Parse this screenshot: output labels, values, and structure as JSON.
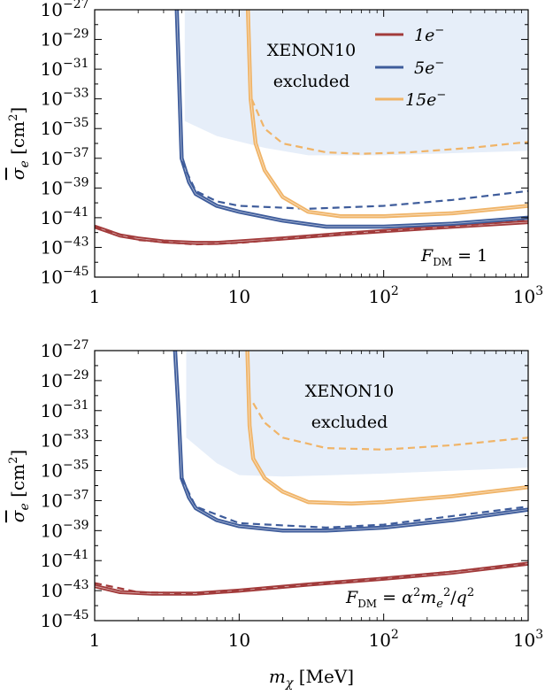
{
  "figure": {
    "xlabel": "m",
    "xlabel_sub": "χ",
    "xlabel_unit": " [MeV]",
    "ylabel": "σ",
    "ylabel_sub": "e",
    "ylabel_unit": " [cm",
    "ylabel_unit_sup": "2",
    "ylabel_unit_close": "]",
    "x_ticks": [
      {
        "value": 1,
        "base": "1",
        "exp": ""
      },
      {
        "value": 10,
        "base": "10",
        "exp": ""
      },
      {
        "value": 100,
        "base": "10",
        "exp": "2"
      },
      {
        "value": 1000,
        "base": "10",
        "exp": "3"
      }
    ],
    "y_ticks": [
      {
        "value": -27,
        "base": "10",
        "exp": "−27"
      },
      {
        "value": -29,
        "base": "10",
        "exp": "−29"
      },
      {
        "value": -31,
        "base": "10",
        "exp": "−31"
      },
      {
        "value": -33,
        "base": "10",
        "exp": "−33"
      },
      {
        "value": -35,
        "base": "10",
        "exp": "−35"
      },
      {
        "value": -37,
        "base": "10",
        "exp": "−37"
      },
      {
        "value": -39,
        "base": "10",
        "exp": "−39"
      },
      {
        "value": -41,
        "base": "10",
        "exp": "−41"
      },
      {
        "value": -43,
        "base": "10",
        "exp": "−43"
      },
      {
        "value": -45,
        "base": "10",
        "exp": "−45"
      }
    ],
    "excluded_label_1": "XENON10",
    "excluded_label_2": "excluded",
    "colors": {
      "one_e": "#a23b3b",
      "five_e": "#3e5c9b",
      "fifteen_e": "#f0b468",
      "excluded": "#e6eef9"
    }
  },
  "chart_data": [
    {
      "type": "line",
      "x_scale": "log",
      "y_scale": "log",
      "xlim": [
        1,
        1000
      ],
      "ylim_log10": [
        -45,
        -27
      ],
      "annotation": "F_DM = 1",
      "legend": {
        "placement": "top-right",
        "entries": [
          "1e⁻",
          "5e⁻",
          "15e⁻"
        ]
      },
      "excluded_region": {
        "label": "XENON10 excluded",
        "boundary": [
          [
            4.2,
            -27
          ],
          [
            4.2,
            -34.5
          ],
          [
            7,
            -35.5
          ],
          [
            15,
            -36.3
          ],
          [
            30,
            -36.8
          ],
          [
            100,
            -36.8
          ],
          [
            1000,
            -36.5
          ],
          [
            1000,
            -27
          ]
        ]
      },
      "series": [
        {
          "name": "1e⁻",
          "style": "solid",
          "points": [
            [
              1,
              -41.6
            ],
            [
              1.5,
              -42.2
            ],
            [
              2,
              -42.4
            ],
            [
              3,
              -42.6
            ],
            [
              5,
              -42.7
            ],
            [
              7,
              -42.7
            ],
            [
              10,
              -42.6
            ],
            [
              20,
              -42.4
            ],
            [
              50,
              -42.1
            ],
            [
              100,
              -41.9
            ],
            [
              300,
              -41.6
            ],
            [
              1000,
              -41.3
            ]
          ]
        },
        {
          "name": "1e⁻",
          "style": "dashed",
          "points": [
            [
              1,
              -41.6
            ],
            [
              2,
              -42.5
            ],
            [
              5,
              -42.8
            ],
            [
              10,
              -42.7
            ],
            [
              30,
              -42.3
            ],
            [
              100,
              -41.9
            ],
            [
              1000,
              -41.2
            ]
          ]
        },
        {
          "name": "5e⁻",
          "style": "solid",
          "points": [
            [
              3.7,
              -27
            ],
            [
              3.85,
              -32
            ],
            [
              4,
              -37
            ],
            [
              4.5,
              -38.6
            ],
            [
              5,
              -39.4
            ],
            [
              7,
              -40.2
            ],
            [
              10,
              -40.6
            ],
            [
              20,
              -41.2
            ],
            [
              40,
              -41.6
            ],
            [
              100,
              -41.6
            ],
            [
              300,
              -41.4
            ],
            [
              1000,
              -41.0
            ]
          ]
        },
        {
          "name": "5e⁻",
          "style": "dashed",
          "points": [
            [
              4,
              -37.2
            ],
            [
              5,
              -39.2
            ],
            [
              7,
              -39.9
            ],
            [
              10,
              -40.2
            ],
            [
              30,
              -40.4
            ],
            [
              100,
              -40.2
            ],
            [
              300,
              -39.8
            ],
            [
              1000,
              -39.2
            ]
          ]
        },
        {
          "name": "15e⁻",
          "style": "solid",
          "points": [
            [
              11.5,
              -27
            ],
            [
              12,
              -33
            ],
            [
              13,
              -36
            ],
            [
              15,
              -37.8
            ],
            [
              20,
              -39.6
            ],
            [
              30,
              -40.6
            ],
            [
              50,
              -40.9
            ],
            [
              100,
              -40.9
            ],
            [
              300,
              -40.7
            ],
            [
              1000,
              -40.2
            ]
          ]
        },
        {
          "name": "15e⁻",
          "style": "dashed",
          "points": [
            [
              12.2,
              -33
            ],
            [
              15,
              -35
            ],
            [
              20,
              -36
            ],
            [
              40,
              -36.6
            ],
            [
              70,
              -36.7
            ],
            [
              150,
              -36.6
            ],
            [
              400,
              -36.3
            ],
            [
              1000,
              -35.9
            ]
          ]
        }
      ]
    },
    {
      "type": "line",
      "x_scale": "log",
      "y_scale": "log",
      "xlim": [
        1,
        1000
      ],
      "ylim_log10": [
        -45,
        -27
      ],
      "annotation": "F_DM = α²m_e²/q²",
      "excluded_region": {
        "label": "XENON10 excluded",
        "boundary": [
          [
            4.3,
            -27
          ],
          [
            4.3,
            -32.8
          ],
          [
            7,
            -34.5
          ],
          [
            10,
            -35.3
          ],
          [
            20,
            -35.4
          ],
          [
            100,
            -35.2
          ],
          [
            1000,
            -34.8
          ],
          [
            1000,
            -27
          ]
        ]
      },
      "series": [
        {
          "name": "1e⁻",
          "style": "solid",
          "points": [
            [
              1,
              -42.7
            ],
            [
              1.5,
              -43.1
            ],
            [
              2.5,
              -43.2
            ],
            [
              5,
              -43.2
            ],
            [
              10,
              -43.0
            ],
            [
              30,
              -42.6
            ],
            [
              100,
              -42.2
            ],
            [
              300,
              -41.8
            ],
            [
              1000,
              -41.2
            ]
          ]
        },
        {
          "name": "1e⁻",
          "style": "dashed",
          "points": [
            [
              1,
              -42.5
            ],
            [
              2,
              -43.1
            ],
            [
              5,
              -43.2
            ],
            [
              10,
              -43.0
            ],
            [
              100,
              -42.2
            ],
            [
              1000,
              -41.2
            ]
          ]
        },
        {
          "name": "5e⁻",
          "style": "solid",
          "points": [
            [
              3.6,
              -27
            ],
            [
              3.8,
              -31
            ],
            [
              4,
              -35.5
            ],
            [
              4.5,
              -36.8
            ],
            [
              5,
              -37.5
            ],
            [
              7,
              -38.3
            ],
            [
              10,
              -38.7
            ],
            [
              20,
              -39.0
            ],
            [
              40,
              -39.0
            ],
            [
              100,
              -38.8
            ],
            [
              300,
              -38.3
            ],
            [
              1000,
              -37.6
            ]
          ]
        },
        {
          "name": "5e⁻",
          "style": "dashed",
          "points": [
            [
              4,
              -35.5
            ],
            [
              5,
              -37.4
            ],
            [
              10,
              -38.5
            ],
            [
              40,
              -38.8
            ],
            [
              100,
              -38.6
            ],
            [
              1000,
              -37.4
            ]
          ]
        },
        {
          "name": "15e⁻",
          "style": "solid",
          "points": [
            [
              11.4,
              -27
            ],
            [
              11.8,
              -32
            ],
            [
              12.5,
              -34.2
            ],
            [
              15,
              -35.5
            ],
            [
              20,
              -36.4
            ],
            [
              30,
              -37.1
            ],
            [
              60,
              -37.2
            ],
            [
              100,
              -37.1
            ],
            [
              300,
              -36.7
            ],
            [
              1000,
              -36.1
            ]
          ]
        },
        {
          "name": "15e⁻",
          "style": "dashed",
          "points": [
            [
              12.5,
              -30.5
            ],
            [
              15,
              -31.8
            ],
            [
              20,
              -32.8
            ],
            [
              40,
              -33.5
            ],
            [
              100,
              -33.6
            ],
            [
              300,
              -33.3
            ],
            [
              1000,
              -32.8
            ]
          ]
        }
      ]
    }
  ]
}
